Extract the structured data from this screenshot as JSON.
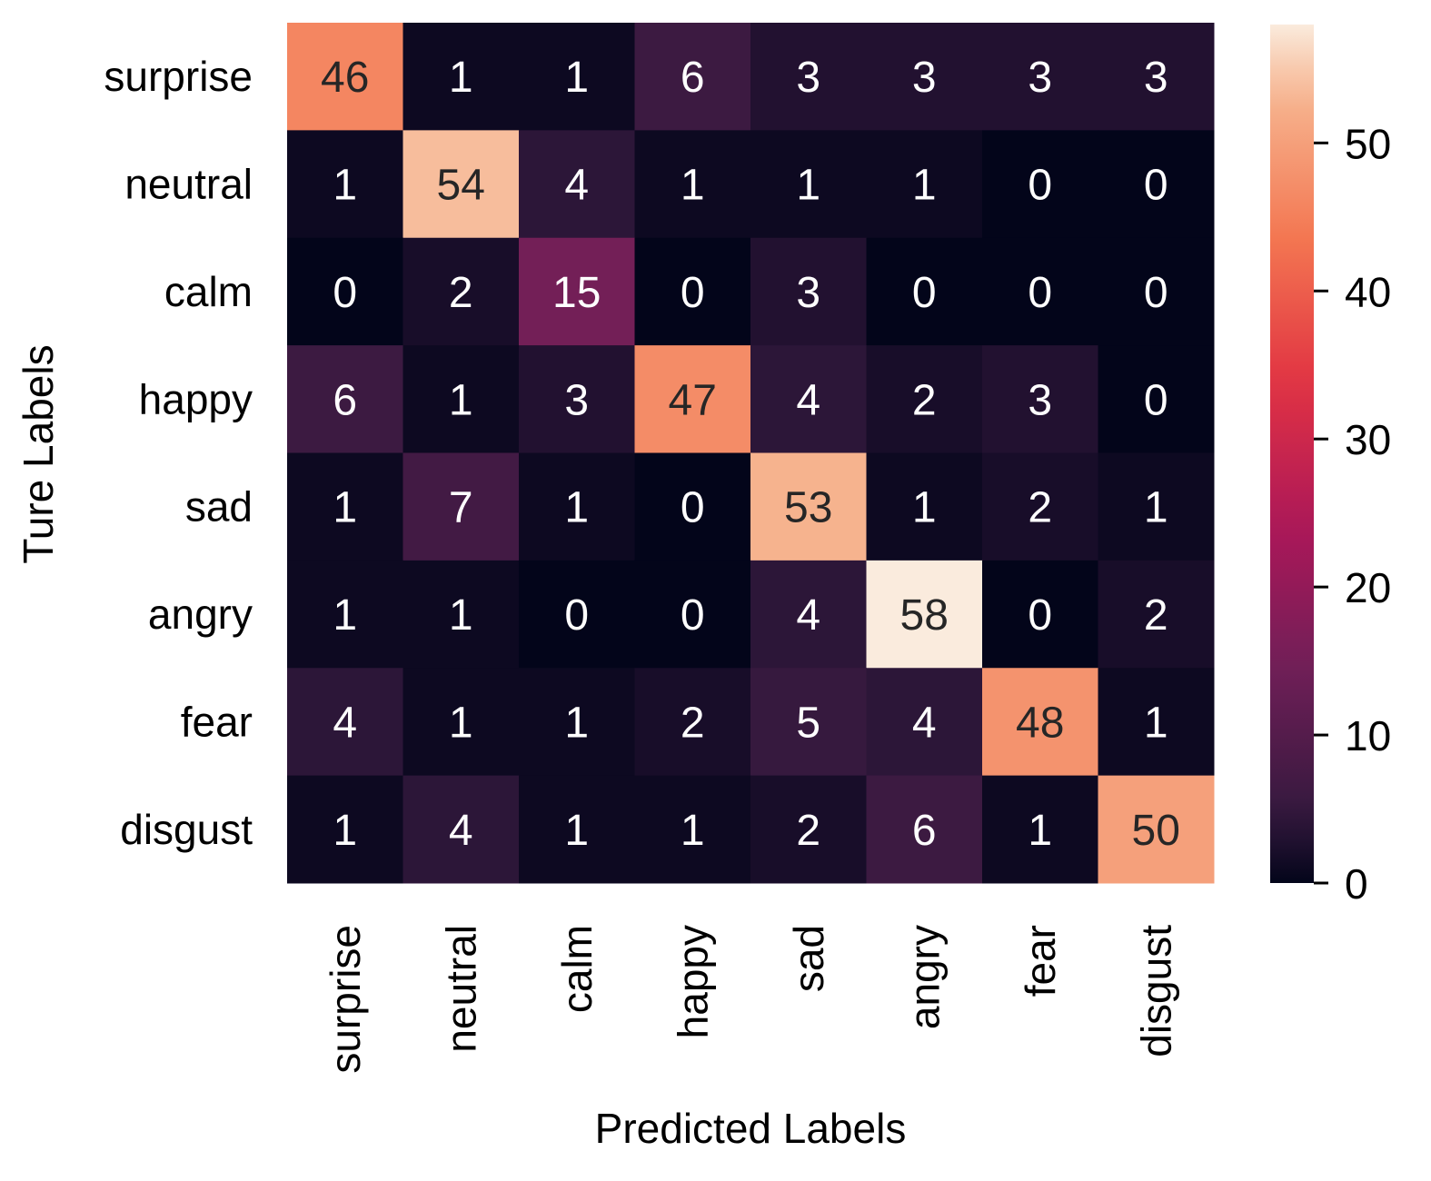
{
  "chart_data": {
    "type": "heatmap",
    "title": "",
    "xlabel": "Predicted Labels",
    "ylabel": "Ture Labels",
    "x_categories": [
      "surprise",
      "neutral",
      "calm",
      "happy",
      "sad",
      "angry",
      "fear",
      "disgust"
    ],
    "y_categories": [
      "surprise",
      "neutral",
      "calm",
      "happy",
      "sad",
      "angry",
      "fear",
      "disgust"
    ],
    "values": [
      [
        46,
        1,
        1,
        6,
        3,
        3,
        3,
        3
      ],
      [
        1,
        54,
        4,
        1,
        1,
        1,
        0,
        0
      ],
      [
        0,
        2,
        15,
        0,
        3,
        0,
        0,
        0
      ],
      [
        6,
        1,
        3,
        47,
        4,
        2,
        3,
        0
      ],
      [
        1,
        7,
        1,
        0,
        53,
        1,
        2,
        1
      ],
      [
        1,
        1,
        0,
        0,
        4,
        58,
        0,
        2
      ],
      [
        4,
        1,
        1,
        2,
        5,
        4,
        48,
        1
      ],
      [
        1,
        4,
        1,
        1,
        2,
        6,
        1,
        50
      ]
    ],
    "colorbar": {
      "range": [
        0,
        58
      ],
      "ticks": [
        0,
        10,
        20,
        30,
        40,
        50
      ],
      "tick_labels": [
        "0",
        "10",
        "20",
        "30",
        "40",
        "50"
      ],
      "colormap": "rocket",
      "colors": [
        "#03051a",
        "#35193e",
        "#701f57",
        "#ad1759",
        "#e13342",
        "#f37651",
        "#f6b48f",
        "#faebdd"
      ]
    },
    "annotations": "cell values shown",
    "grid": false
  }
}
